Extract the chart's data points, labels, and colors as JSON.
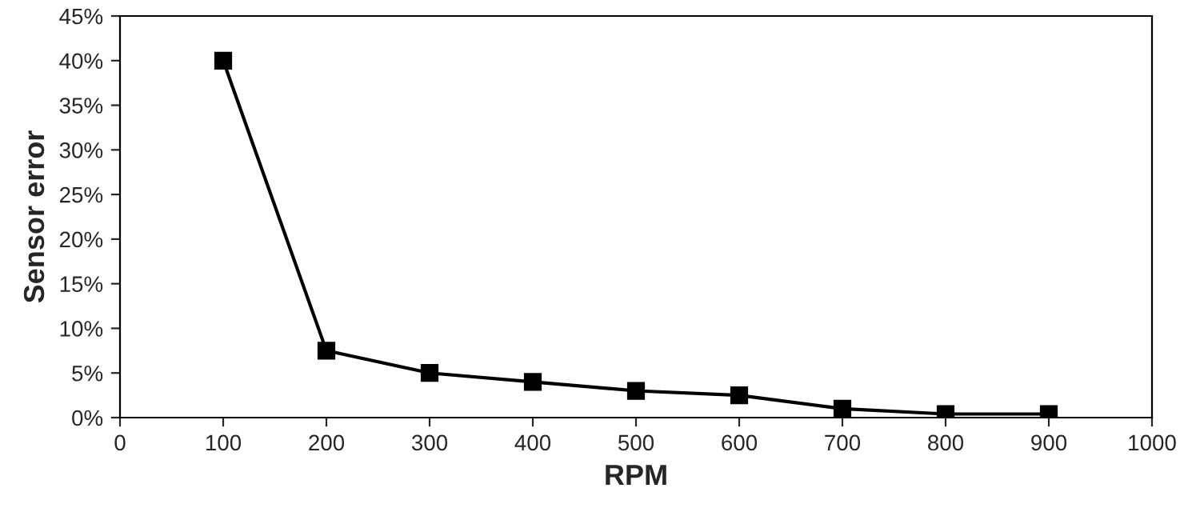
{
  "chart_data": {
    "type": "line",
    "xlabel": "RPM",
    "ylabel": "Sensor error",
    "x": [
      100,
      200,
      300,
      400,
      500,
      600,
      700,
      800,
      900
    ],
    "series": [
      {
        "color": "#000000",
        "values": [
          40,
          7.5,
          5,
          4,
          3,
          2.5,
          1,
          0.4,
          0.4
        ]
      }
    ],
    "xlim": [
      0,
      1000
    ],
    "xticks": [
      0,
      100,
      200,
      300,
      400,
      500,
      600,
      700,
      800,
      900,
      1000
    ],
    "ylim": [
      0,
      45
    ],
    "yticks": [
      {
        "value": 0,
        "label": "0%"
      },
      {
        "value": 5,
        "label": "5%"
      },
      {
        "value": 10,
        "label": "10%"
      },
      {
        "value": 15,
        "label": "15%"
      },
      {
        "value": 20,
        "label": "20%"
      },
      {
        "value": 25,
        "label": "25%"
      },
      {
        "value": 30,
        "label": "30%"
      },
      {
        "value": 35,
        "label": "35%"
      },
      {
        "value": 40,
        "label": "40%"
      },
      {
        "value": 45,
        "label": "45%"
      }
    ],
    "grid": false,
    "marker": "square",
    "line_style": "solid"
  }
}
